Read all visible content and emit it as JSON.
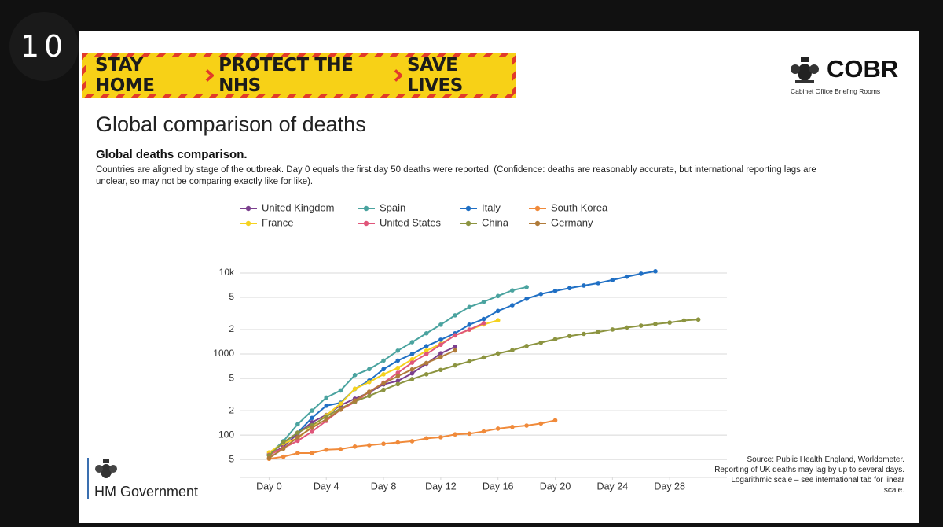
{
  "badge": "10",
  "banner": {
    "items": [
      "STAY HOME",
      "PROTECT THE NHS",
      "SAVE LIVES"
    ]
  },
  "logo": {
    "name": "COBR",
    "subtitle": "Cabinet Office Briefing Rooms"
  },
  "heading": "Global comparison of deaths",
  "footer": {
    "government": "HM Government",
    "source": "Source: Public Health England, Worldometer. Reporting of UK deaths may lag by up to several days. Logarithmic scale – see international tab for linear scale."
  },
  "chart_data": {
    "type": "line",
    "title": "Global deaths comparison.",
    "subtitle": "Countries are aligned by stage of the outbreak. Day 0 equals the first day 50 deaths were reported. (Confidence: deaths are reasonably accurate, but international reporting lags are unclear, so may not be comparing exactly like for like).",
    "yscale": "log",
    "grid": true,
    "legend": "top",
    "xlim": [
      -2,
      32
    ],
    "ylim": [
      30,
      10000
    ],
    "xticks": [
      {
        "value": 0,
        "label": "Day 0"
      },
      {
        "value": 4,
        "label": "Day 4"
      },
      {
        "value": 8,
        "label": "Day 8"
      },
      {
        "value": 12,
        "label": "Day 12"
      },
      {
        "value": 16,
        "label": "Day 16"
      },
      {
        "value": 20,
        "label": "Day 20"
      },
      {
        "value": 24,
        "label": "Day 24"
      },
      {
        "value": 28,
        "label": "Day 28"
      }
    ],
    "yticks": [
      {
        "value": 50,
        "label": "5"
      },
      100,
      {
        "value": 200,
        "label": "2"
      },
      {
        "value": 500,
        "label": "5"
      },
      1000,
      {
        "value": 2000,
        "label": "2"
      },
      {
        "value": 5000,
        "label": "5"
      },
      {
        "value": 10000,
        "label": "10k"
      }
    ],
    "x": [
      0,
      1,
      2,
      3,
      4,
      5,
      6,
      7,
      8,
      9,
      10,
      11,
      12,
      13,
      14,
      15,
      16,
      17,
      18,
      19,
      20,
      21,
      22,
      23,
      24,
      25,
      26,
      27,
      28,
      29,
      30
    ],
    "series": [
      {
        "name": "United Kingdom",
        "color": "#7b3f8e",
        "values": [
          56,
          72,
          104,
          144,
          177,
          233,
          281,
          335,
          422,
          465,
          578,
          759,
          1019,
          1228,
          null,
          null,
          null,
          null,
          null,
          null,
          null,
          null,
          null,
          null,
          null,
          null,
          null,
          null,
          null,
          null,
          null
        ]
      },
      {
        "name": "Spain",
        "color": "#4aa39f",
        "values": [
          58,
          84,
          136,
          200,
          290,
          355,
          550,
          650,
          830,
          1100,
          1400,
          1800,
          2300,
          3000,
          3800,
          4400,
          5200,
          6100,
          6700,
          null,
          null,
          null,
          null,
          null,
          null,
          null,
          null,
          null,
          null,
          null,
          null
        ]
      },
      {
        "name": "Italy",
        "color": "#1f6fc4",
        "values": [
          58,
          80,
          107,
          163,
          230,
          250,
          370,
          470,
          650,
          830,
          1000,
          1250,
          1500,
          1800,
          2300,
          2700,
          3400,
          4000,
          4800,
          5500,
          6000,
          6500,
          7000,
          7500,
          8200,
          9000,
          9800,
          10500,
          null,
          null,
          null
        ]
      },
      {
        "name": "South Korea",
        "color": "#f08a3a",
        "values": [
          51,
          54,
          60,
          60,
          66,
          67,
          72,
          75,
          78,
          81,
          84,
          91,
          94,
          102,
          104,
          111,
          120,
          126,
          131,
          139,
          152,
          null,
          null,
          null,
          null,
          null,
          null,
          null,
          null,
          null,
          null
        ]
      },
      {
        "name": "France",
        "color": "#f5d21f",
        "values": [
          61,
          79,
          91,
          128,
          175,
          244,
          372,
          450,
          562,
          674,
          860,
          1100,
          1331,
          1696,
          1995,
          2314,
          2606,
          null,
          null,
          null,
          null,
          null,
          null,
          null,
          null,
          null,
          null,
          null,
          null,
          null,
          null
        ]
      },
      {
        "name": "United States",
        "color": "#e0567a",
        "values": [
          57,
          69,
          85,
          110,
          150,
          206,
          255,
          341,
          442,
          586,
          782,
          1000,
          1300,
          1700,
          2000,
          2400,
          null,
          null,
          null,
          null,
          null,
          null,
          null,
          null,
          null,
          null,
          null,
          null,
          null,
          null,
          null
        ]
      },
      {
        "name": "China",
        "color": "#8c9440",
        "values": [
          56,
          81,
          107,
          132,
          170,
          213,
          259,
          304,
          361,
          425,
          490,
          563,
          637,
          722,
          811,
          908,
          1016,
          1113,
          1259,
          1380,
          1523,
          1665,
          1770,
          1868,
          2004,
          2118,
          2236,
          2345,
          2442,
          2592,
          2663
        ]
      },
      {
        "name": "Germany",
        "color": "#b07b3a",
        "values": [
          52,
          68,
          94,
          123,
          157,
          206,
          267,
          342,
          433,
          533,
          645,
          775,
          920,
          1107,
          null,
          null,
          null,
          null,
          null,
          null,
          null,
          null,
          null,
          null,
          null,
          null,
          null,
          null,
          null,
          null,
          null
        ]
      }
    ]
  }
}
